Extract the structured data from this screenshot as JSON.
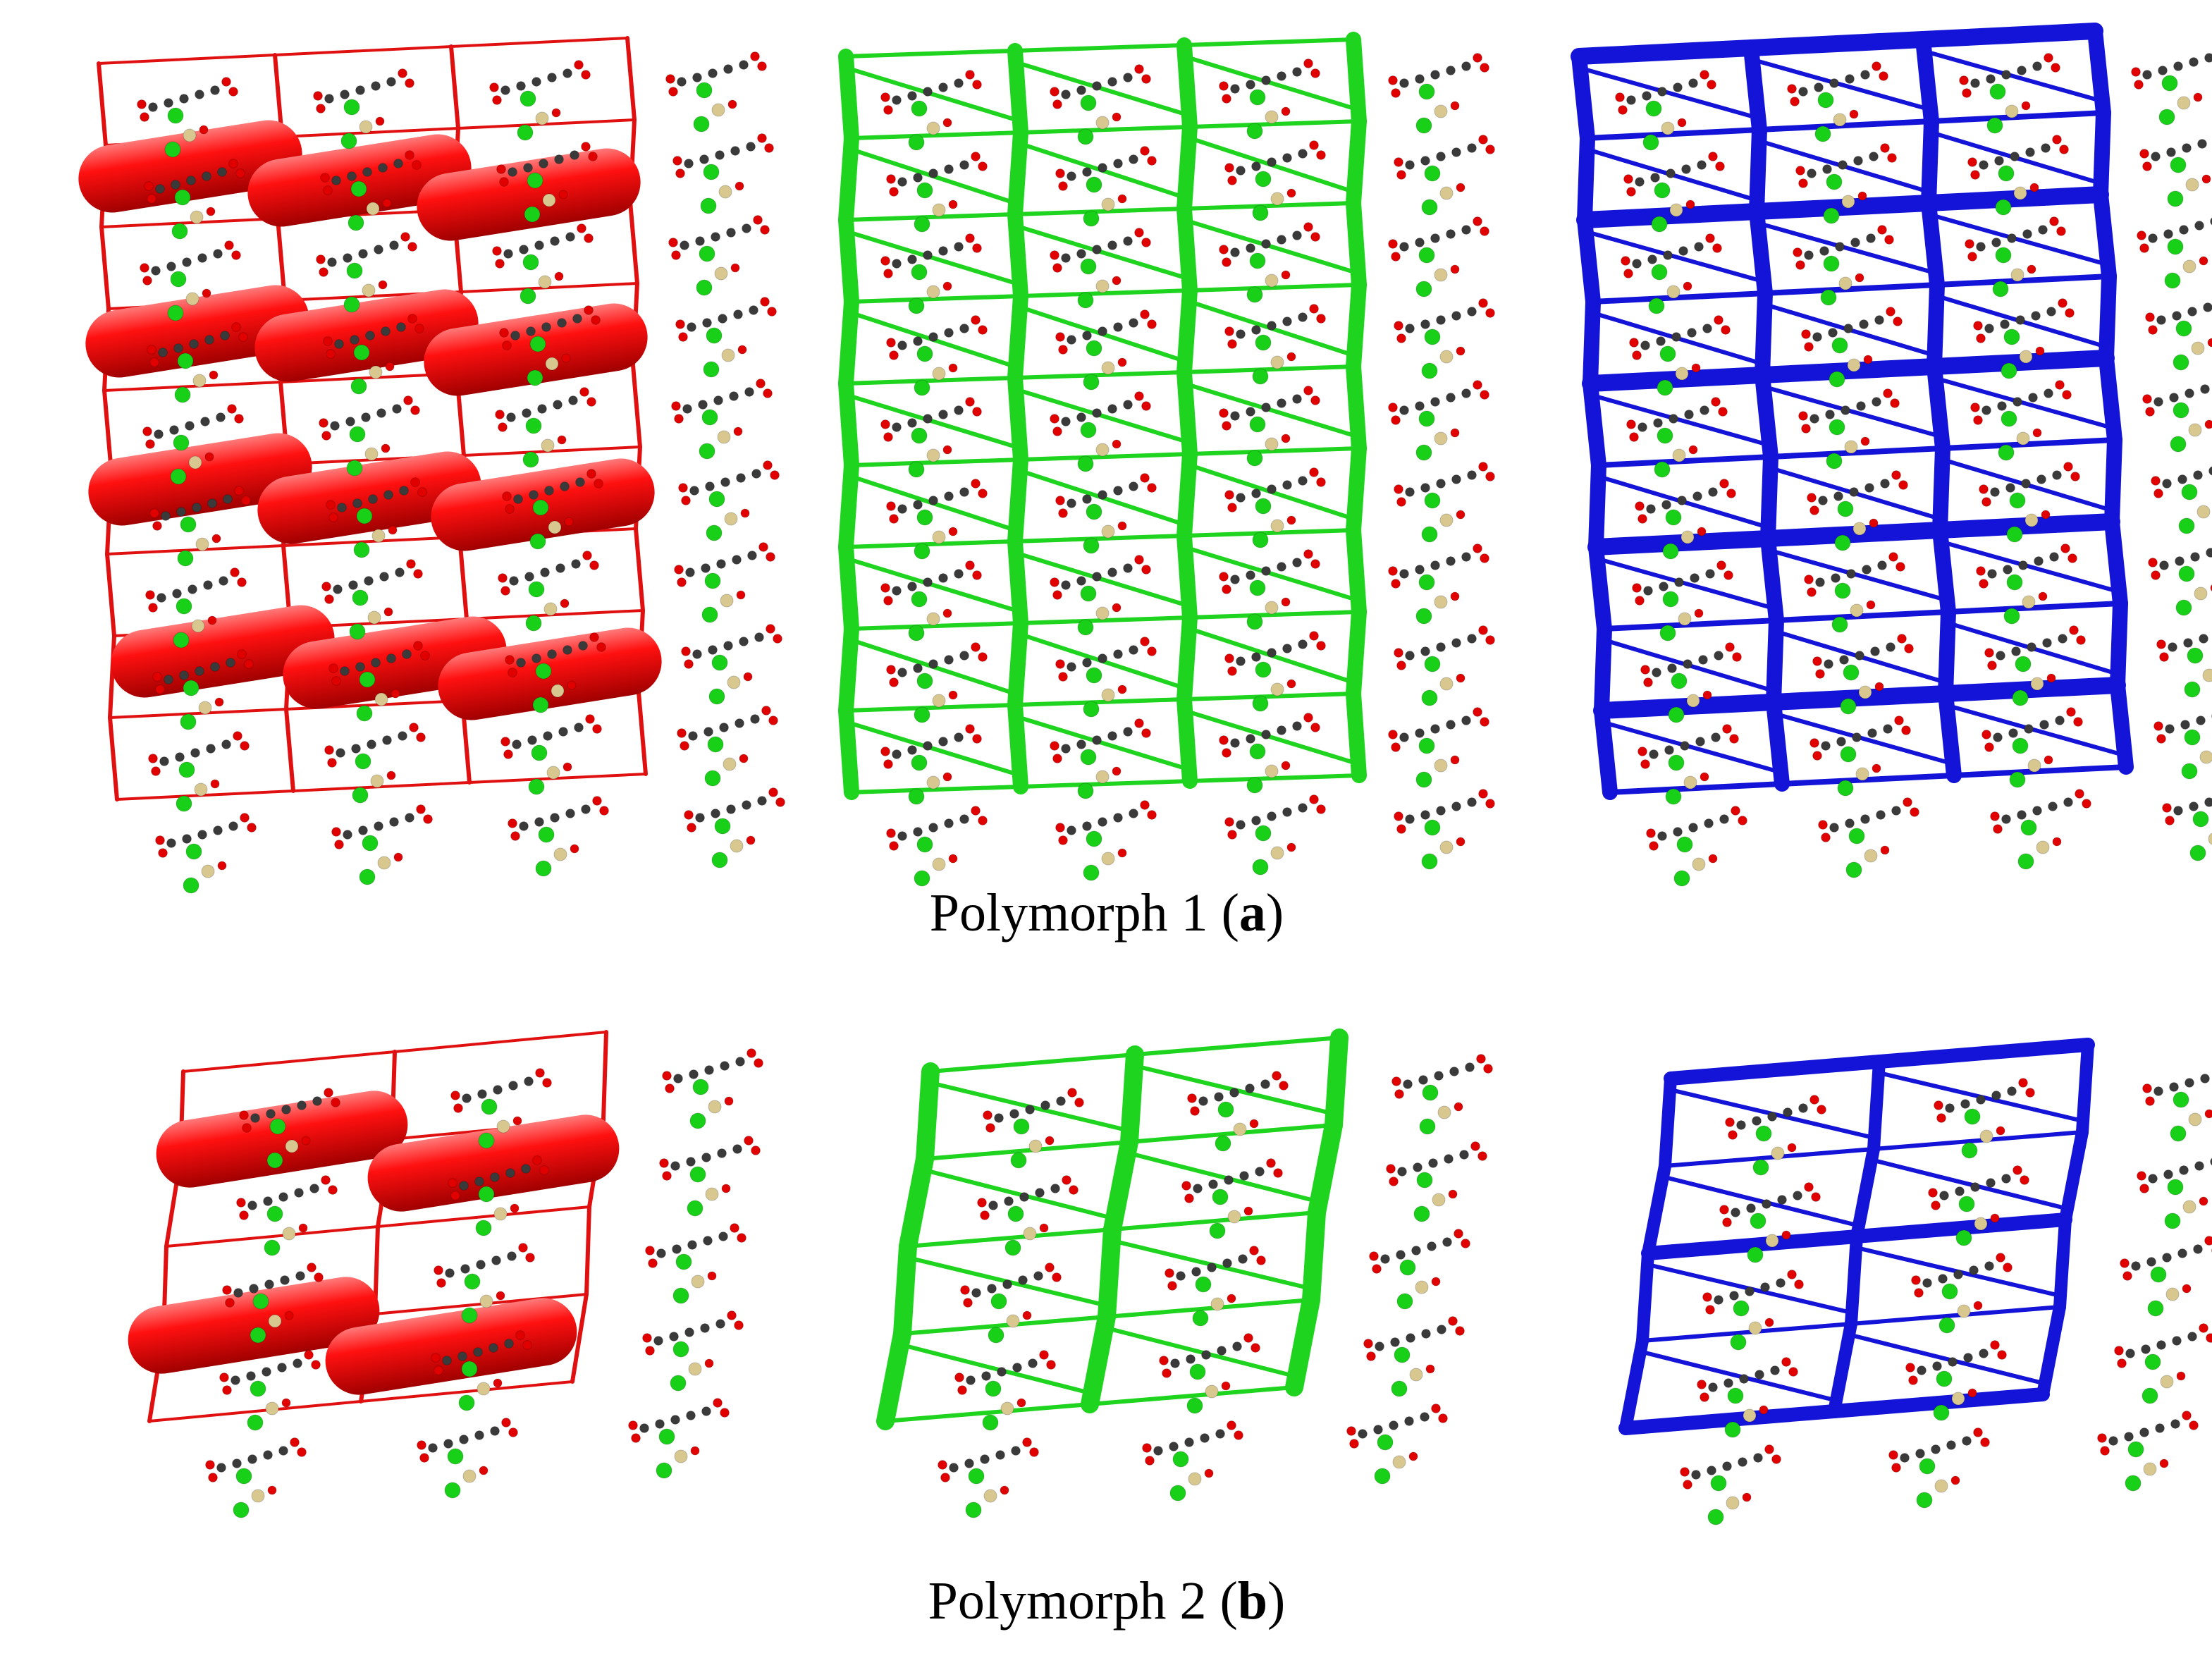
{
  "panels": [
    {
      "caption": {
        "text": "Polymorph 1 (",
        "letter": "a",
        "close": ")"
      }
    },
    {
      "caption": {
        "text": "Polymorph 2 (",
        "letter": "b",
        "close": ")"
      }
    }
  ]
}
